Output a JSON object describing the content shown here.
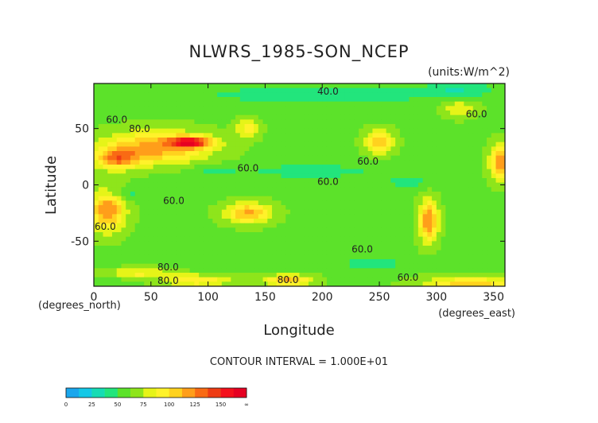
{
  "chart_data": {
    "type": "heatmap",
    "title": "NLWRS_1985-SON_NCEP",
    "units_label": "(units:W/m^2)",
    "xlabel": "Longitude",
    "ylabel": "Latitude",
    "x_unit_label": "(degrees_east)",
    "y_unit_label": "(degrees_north)",
    "xlim": [
      0,
      360
    ],
    "ylim": [
      -90,
      90
    ],
    "x_ticks": [
      0,
      50,
      100,
      150,
      200,
      250,
      300,
      350
    ],
    "y_ticks": [
      50,
      0,
      -50
    ],
    "contour_interval_text": "CONTOUR INTERVAL = 1.000E+01",
    "contour_labels": [
      {
        "text": "40.0",
        "lon": 205,
        "lat": 80
      },
      {
        "text": "60.0",
        "lon": 20,
        "lat": 55
      },
      {
        "text": "80.0",
        "lon": 40,
        "lat": 47
      },
      {
        "text": "60.0",
        "lon": 135,
        "lat": 12
      },
      {
        "text": "60.0",
        "lon": 240,
        "lat": 18
      },
      {
        "text": "60.0",
        "lon": 205,
        "lat": 0
      },
      {
        "text": "60.0",
        "lon": 70,
        "lat": -17
      },
      {
        "text": "60.0",
        "lon": 10,
        "lat": -40
      },
      {
        "text": "60.0",
        "lon": 235,
        "lat": -60
      },
      {
        "text": "60.0",
        "lon": 335,
        "lat": 60
      },
      {
        "text": "60.0",
        "lon": 275,
        "lat": -85
      },
      {
        "text": "80.0",
        "lon": 65,
        "lat": -76
      },
      {
        "text": "80.0",
        "lon": 65,
        "lat": -88
      },
      {
        "text": "80.0",
        "lon": 170,
        "lat": -87
      }
    ],
    "colorbar": {
      "boundaries": [
        "0",
        "25",
        "50",
        "75",
        "100",
        "125",
        "150",
        "∞"
      ],
      "bins": [
        {
          "from": 0,
          "to": 12.5,
          "color": "#1aa6ec"
        },
        {
          "from": 12.5,
          "to": 25,
          "color": "#14c8e6"
        },
        {
          "from": 25,
          "to": 37.5,
          "color": "#16dcb4"
        },
        {
          "from": 37.5,
          "to": 50,
          "color": "#22e57c"
        },
        {
          "from": 50,
          "to": 62.5,
          "color": "#5ce22a"
        },
        {
          "from": 62.5,
          "to": 75,
          "color": "#8ee51b"
        },
        {
          "from": 75,
          "to": 87.5,
          "color": "#e6f418"
        },
        {
          "from": 87.5,
          "to": 100,
          "color": "#fff22a"
        },
        {
          "from": 100,
          "to": 112.5,
          "color": "#ffd21e"
        },
        {
          "from": 112.5,
          "to": 125,
          "color": "#ff9e1a"
        },
        {
          "from": 125,
          "to": 137.5,
          "color": "#f96a14"
        },
        {
          "from": 137.5,
          "to": 150,
          "color": "#ee3c14"
        },
        {
          "from": 150,
          "to": 162.5,
          "color": "#f4101c"
        },
        {
          "from": 162.5,
          "to": 175,
          "color": "#e60022"
        }
      ]
    },
    "background_value": 60,
    "features": [
      {
        "lon": 55,
        "lat": 33,
        "rlon": 45,
        "rlat": 14,
        "value": 120
      },
      {
        "lon": 20,
        "lat": 23,
        "rlon": 18,
        "rlat": 9,
        "value": 118
      },
      {
        "lon": 85,
        "lat": 38,
        "rlon": 18,
        "rlat": 5,
        "value": 140
      },
      {
        "lon": 135,
        "lat": 50,
        "rlon": 10,
        "rlat": 8,
        "value": 95
      },
      {
        "lon": 12,
        "lat": -23,
        "rlon": 15,
        "rlat": 18,
        "value": 125
      },
      {
        "lon": 135,
        "lat": -25,
        "rlon": 20,
        "rlat": 9,
        "value": 115
      },
      {
        "lon": 250,
        "lat": 38,
        "rlon": 12,
        "rlat": 10,
        "value": 110
      },
      {
        "lon": 293,
        "lat": -32,
        "rlon": 8,
        "rlat": 18,
        "value": 125
      },
      {
        "lon": 357,
        "lat": 20,
        "rlon": 10,
        "rlat": 15,
        "value": 125
      },
      {
        "lon": 320,
        "lat": 68,
        "rlon": 15,
        "rlat": 8,
        "value": 85
      },
      {
        "lon": 330,
        "lat": -88,
        "rlon": 40,
        "rlat": 6,
        "value": 110
      },
      {
        "lon": 90,
        "lat": -85,
        "rlon": 30,
        "rlat": 5,
        "value": 100
      },
      {
        "lon": 170,
        "lat": -85,
        "rlon": 20,
        "rlat": 5,
        "value": 115
      },
      {
        "lon": 40,
        "lat": -78,
        "rlon": 25,
        "rlat": 4,
        "value": 95
      },
      {
        "lon": 200,
        "lat": 80,
        "rlon": 110,
        "rlat": 8,
        "value": 40
      },
      {
        "lon": 320,
        "lat": 85,
        "rlon": 30,
        "rlat": 6,
        "value": 40
      },
      {
        "lon": 190,
        "lat": 12,
        "rlon": 70,
        "rlat": 8,
        "value": 45
      },
      {
        "lon": 105,
        "lat": 12,
        "rlon": 18,
        "rlat": 5,
        "value": 45
      },
      {
        "lon": 25,
        "lat": -8,
        "rlon": 18,
        "rlat": 5,
        "value": 42
      },
      {
        "lon": 275,
        "lat": 2,
        "rlon": 20,
        "rlat": 6,
        "value": 45
      },
      {
        "lon": 245,
        "lat": -70,
        "rlon": 50,
        "rlat": 4,
        "value": 45
      }
    ]
  }
}
